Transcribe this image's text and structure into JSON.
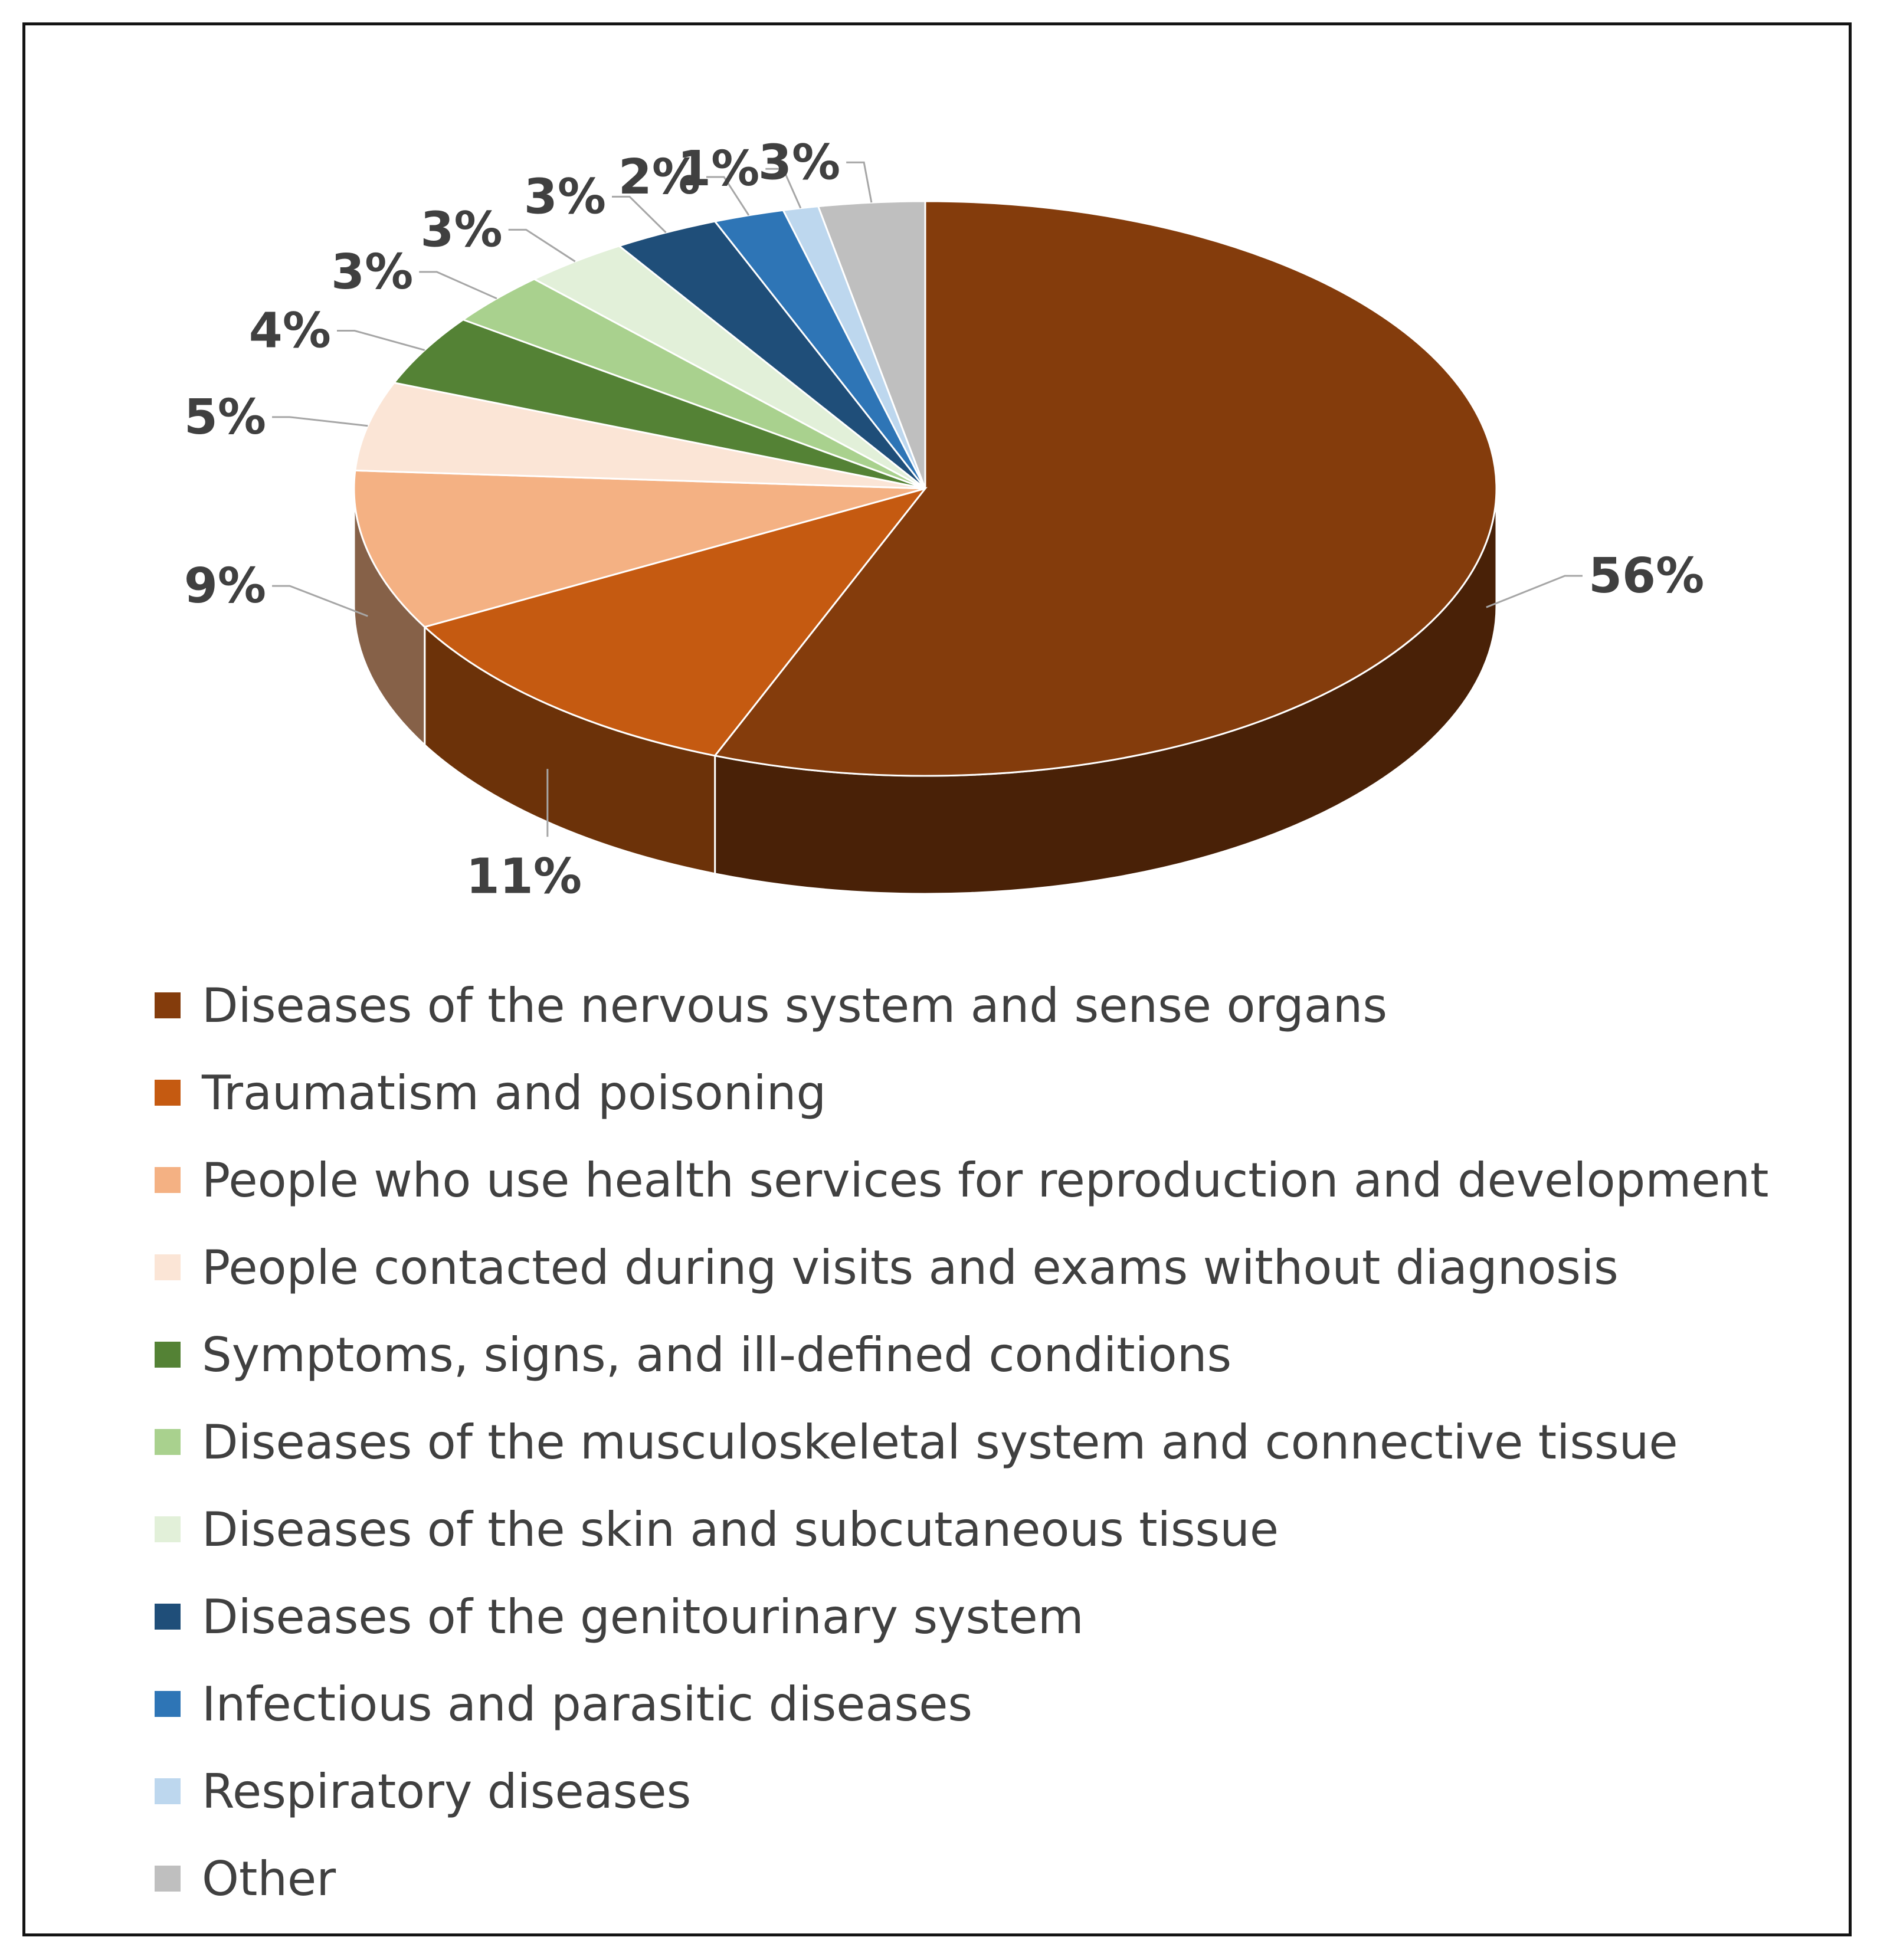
{
  "chart_data": {
    "type": "pie",
    "style": "3d",
    "title": "",
    "start": "top",
    "direction": "clockwise",
    "slices": [
      {
        "label": "Diseases of the nervous system and sense organs",
        "value": 56,
        "display": "56%",
        "color": "#843C0C"
      },
      {
        "label": "Traumatism and poisoning",
        "value": 11,
        "display": "11%",
        "color": "#C55A11"
      },
      {
        "label": "People who use health services for reproduction and development",
        "value": 9,
        "display": "9%",
        "color": "#F4B183"
      },
      {
        "label": "People contacted during visits and exams without diagnosis",
        "value": 5,
        "display": "5%",
        "color": "#FBE5D6"
      },
      {
        "label": "Symptoms, signs, and ill-defined conditions",
        "value": 4,
        "display": "4%",
        "color": "#548235"
      },
      {
        "label": "Diseases of the musculoskeletal system and connective tissue",
        "value": 3,
        "display": "3%",
        "color": "#A9D18E"
      },
      {
        "label": "Diseases of the skin and subcutaneous tissue",
        "value": 3,
        "display": "3%",
        "color": "#E2F0D9"
      },
      {
        "label": "Diseases of the genitourinary system",
        "value": 3,
        "display": "3%",
        "color": "#1F4E79"
      },
      {
        "label": "Infectious and parasitic diseases",
        "value": 2,
        "display": "2%",
        "color": "#2E75B6"
      },
      {
        "label": "Respiratory diseases",
        "value": 1,
        "display": "1%",
        "color": "#BDD7EE"
      },
      {
        "label": "Other",
        "value": 3,
        "display": "3%",
        "color": "#BFBFBF"
      }
    ],
    "legend_position": "bottom"
  }
}
